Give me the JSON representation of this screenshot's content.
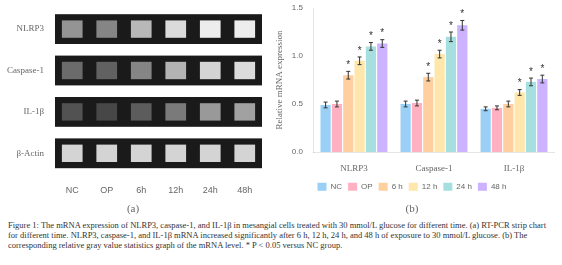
{
  "chart_data": [
    {
      "type": "heatmap",
      "title": "(a)",
      "x": [
        "NC",
        "OP",
        "6h",
        "12h",
        "24h",
        "48h"
      ],
      "y": [
        "NLRP3",
        "Caspase-1",
        "IL-1β",
        "β-Actin"
      ],
      "cells": [
        [
          0.58,
          0.52,
          0.72,
          0.86,
          0.93,
          0.93
        ],
        [
          0.42,
          0.38,
          0.52,
          0.7,
          0.83,
          0.86
        ],
        [
          0.32,
          0.28,
          0.36,
          0.48,
          0.6,
          0.63
        ],
        [
          0.83,
          0.83,
          0.83,
          0.83,
          0.83,
          0.83
        ]
      ]
    },
    {
      "type": "bar",
      "title": "(b)",
      "categories": [
        "NLRP3",
        "Caspase-1",
        "IL-1β"
      ],
      "ylabel": "Relative mRNA expression",
      "ylim": [
        0,
        1.5
      ],
      "yticks": [
        {
          "value": 0,
          "label": "0.0"
        },
        {
          "value": 0.5,
          "label": "0.5"
        },
        {
          "value": 1.0,
          "label": "1.0"
        },
        {
          "value": 1.5,
          "label": "1.5"
        }
      ],
      "grid": false,
      "legend": "bottom",
      "series": [
        {
          "name": "NC",
          "values": [
            0.49,
            0.5,
            0.45
          ],
          "errors": [
            0.03,
            0.03,
            0.02
          ],
          "annotations": [
            null,
            null,
            null
          ]
        },
        {
          "name": "OP",
          "values": [
            0.5,
            0.51,
            0.46
          ],
          "errors": [
            0.03,
            0.03,
            0.02
          ],
          "annotations": [
            null,
            null,
            null
          ]
        },
        {
          "name": "6 h",
          "values": [
            0.8,
            0.78,
            0.5
          ],
          "errors": [
            0.04,
            0.04,
            0.03
          ],
          "annotations": [
            "*",
            "*",
            null
          ]
        },
        {
          "name": "12 h",
          "values": [
            0.95,
            1.02,
            0.62
          ],
          "errors": [
            0.04,
            0.04,
            0.03
          ],
          "annotations": [
            "*",
            "*",
            "*"
          ]
        },
        {
          "name": "24 h",
          "values": [
            1.1,
            1.2,
            0.73
          ],
          "errors": [
            0.04,
            0.05,
            0.04
          ],
          "annotations": [
            "*",
            "*",
            "*"
          ]
        },
        {
          "name": "48 h",
          "values": [
            1.13,
            1.32,
            0.76
          ],
          "errors": [
            0.04,
            0.05,
            0.04
          ],
          "annotations": [
            "*",
            "*",
            "*"
          ]
        }
      ],
      "annotations": [
        "Figure 1: The mRNA expression of NLRP3, caspase-1, and IL-1β in mesangial cells treated with 30 mmol/L glucose for different time. (a) RT-PCR strip chart for different time. NLRP3, caspase-1, and IL-1β mRNA increased significantly after 6 h, 12 h, 24 h, and 48 h of exposure to 30 mmol/L glucose. (b) The corresponding relative gray value statistics graph of the mRNA level. * P < 0.05 versus NC group."
      ]
    }
  ]
}
